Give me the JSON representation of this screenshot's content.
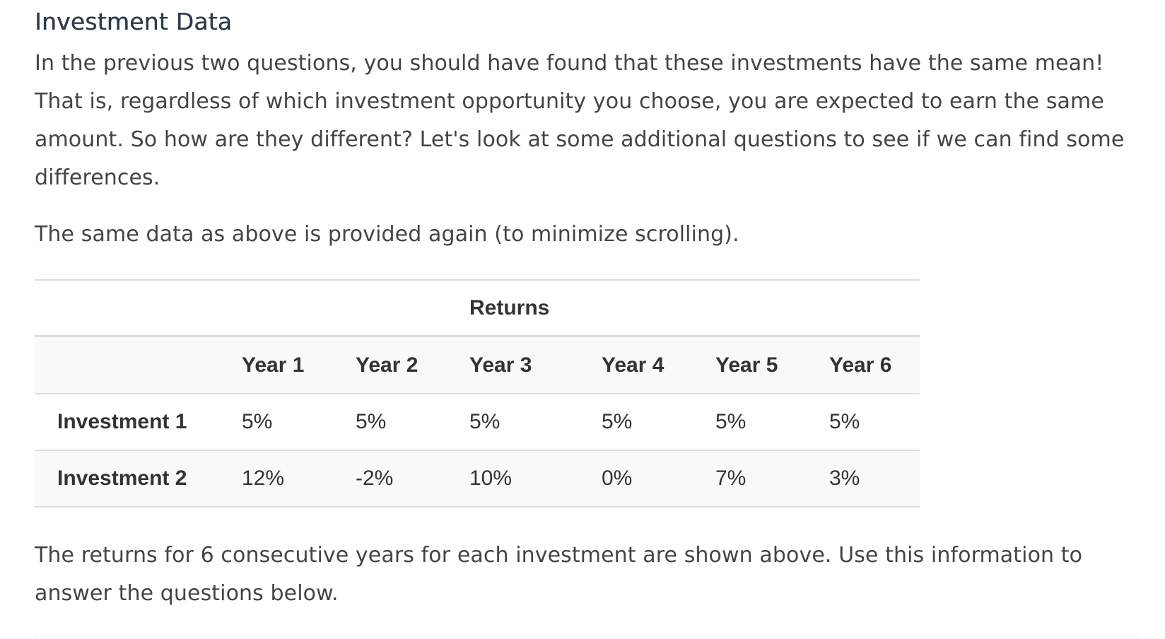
{
  "section": {
    "title": "Investment Data",
    "intro": "In the previous two questions, you should have found that these investments have the same mean! That is, regardless of which investment opportunity you choose, you are expected to earn the same amount. So how are they different? Let's look at some additional questions to see if we can find some differences.",
    "note": "The same data as above is provided again (to minimize scrolling).",
    "footer": "The returns for 6 consecutive years for each investment are shown above. Use this information to answer the questions below."
  },
  "table": {
    "group_header": "Returns",
    "columns": [
      "",
      "Year 1",
      "Year 2",
      "Year 3",
      "Year 4",
      "Year 5",
      "Year 6"
    ],
    "rows": [
      {
        "label": "Investment 1",
        "values": [
          "5%",
          "5%",
          "5%",
          "5%",
          "5%",
          "5%"
        ]
      },
      {
        "label": "Investment 2",
        "values": [
          "12%",
          "-2%",
          "10%",
          "0%",
          "7%",
          "3%"
        ]
      }
    ]
  }
}
